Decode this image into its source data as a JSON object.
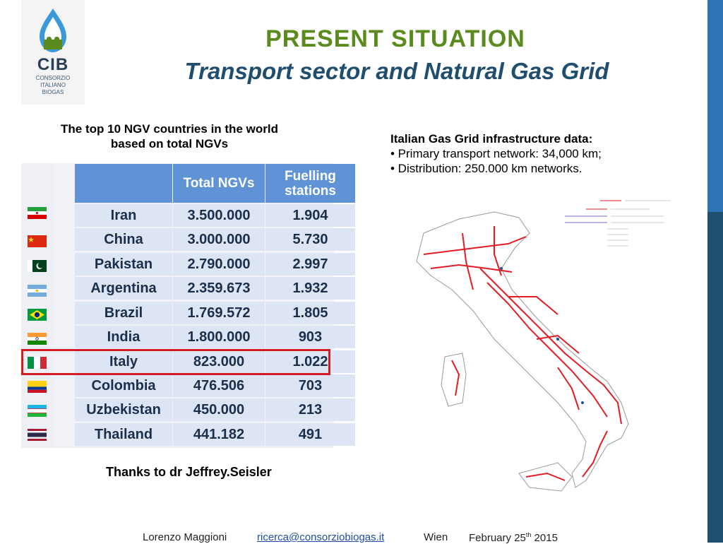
{
  "logo": {
    "abbr": "CIB",
    "line1": "CONSORZIO",
    "line2": "ITALIANO",
    "line3": "BIOGAS"
  },
  "header": {
    "title": "PRESENT SITUATION",
    "subtitle": "Transport sector and Natural Gas Grid"
  },
  "table_caption": {
    "line1": "The top 10 NGV countries in the world",
    "line2": "based on total NGVs"
  },
  "table": {
    "headers": [
      "",
      "Total NGVs",
      "Fuelling\nstations"
    ],
    "header_total": "Total NGVs",
    "header_fuel_1": "Fuelling",
    "header_fuel_2": "stations",
    "rows": [
      {
        "country": "Iran",
        "total": "3.500.000",
        "stations": "1.904"
      },
      {
        "country": "China",
        "total": "3.000.000",
        "stations": "5.730"
      },
      {
        "country": "Pakistan",
        "total": "2.790.000",
        "stations": "2.997"
      },
      {
        "country": "Argentina",
        "total": "2.359.673",
        "stations": "1.932"
      },
      {
        "country": "Brazil",
        "total": "1.769.572",
        "stations": "1.805"
      },
      {
        "country": "India",
        "total": "1.800.000",
        "stations": "903"
      },
      {
        "country": "Italy",
        "total": "823.000",
        "stations": "1.022"
      },
      {
        "country": "Colombia",
        "total": "476.506",
        "stations": "703"
      },
      {
        "country": "Uzbekistan",
        "total": "450.000",
        "stations": "213"
      },
      {
        "country": "Thailand",
        "total": "441.182",
        "stations": "491"
      }
    ],
    "highlighted_row": "Italy"
  },
  "grid_info": {
    "heading": "Italian Gas Grid infrastructure data:",
    "bullet1": "• Primary transport network: 34,000 km;",
    "bullet2": "• Distribution: 250.000 km networks."
  },
  "thanks": "Thanks to dr Jeffrey.Seisler",
  "footer": {
    "author": "Lorenzo Maggioni",
    "email": "ricerca@consorziobiogas.it",
    "city": "Wien",
    "date_pre": "February 25",
    "date_sup": "th",
    "date_post": " 2015"
  },
  "colors": {
    "title_green": "#5b8a1e",
    "subtitle_blue": "#1f4e6e",
    "table_header": "#5f93d6",
    "highlight_red": "#d21d24",
    "map_lines": "#e31b23"
  }
}
